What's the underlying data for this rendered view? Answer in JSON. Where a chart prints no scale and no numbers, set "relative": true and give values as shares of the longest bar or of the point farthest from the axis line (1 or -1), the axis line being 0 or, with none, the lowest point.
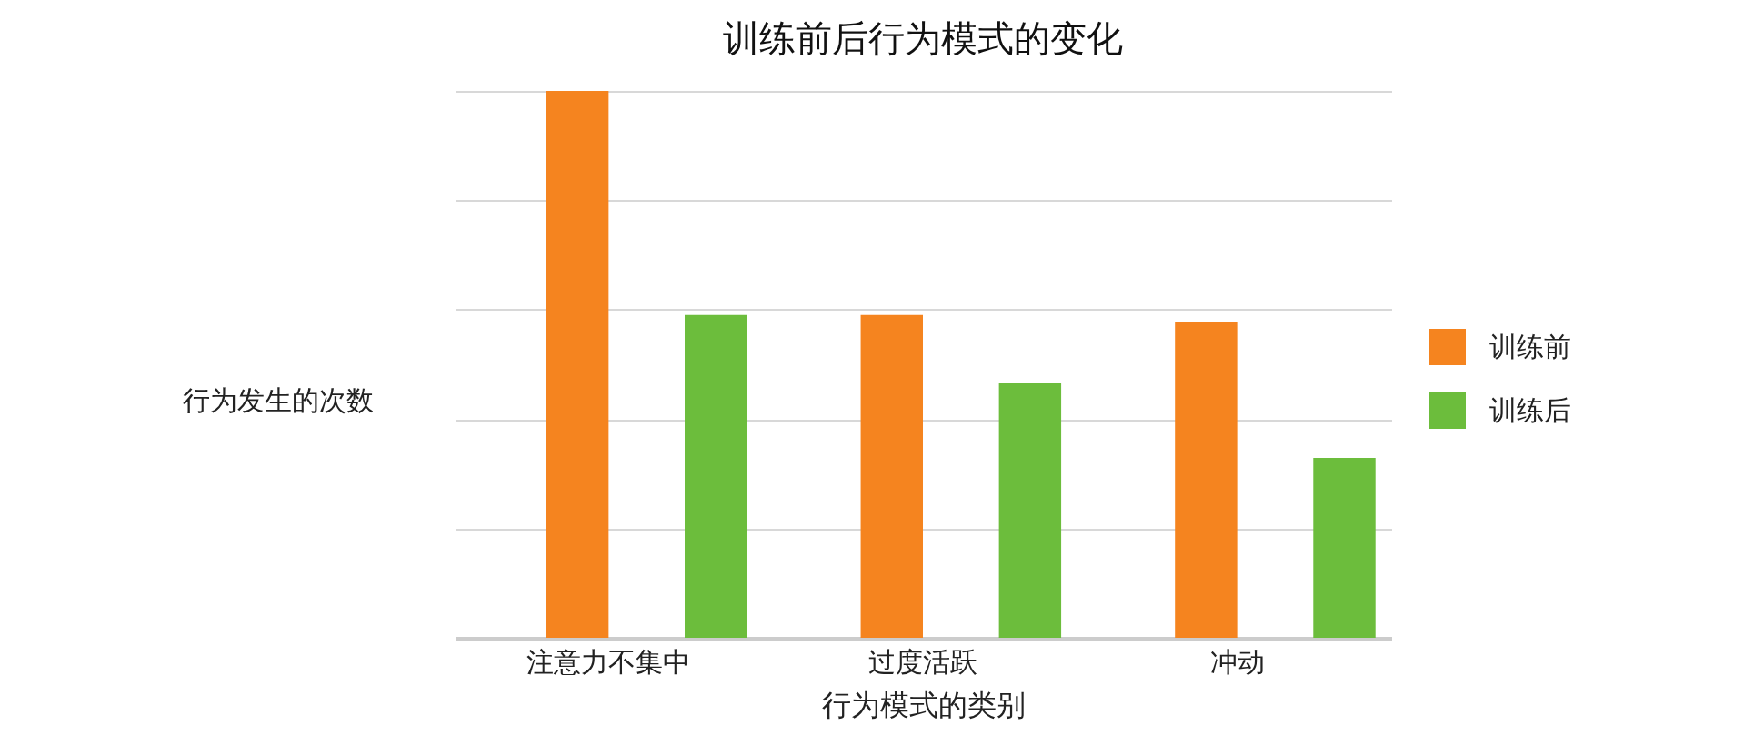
{
  "chart_data": {
    "type": "bar",
    "title": "训练前后行为模式的变化",
    "xlabel": "行为模式的类别",
    "ylabel": "行为发生的次数",
    "relative": true,
    "grid": "y",
    "legend": "right",
    "categories": [
      "注意力不集中",
      "过度活跃",
      "冲动"
    ],
    "series": [
      {
        "name": "训练前",
        "color": "#f5841f",
        "values": [
          1,
          0.59,
          0.578
        ]
      },
      {
        "name": "训练后",
        "color": "#6cbd3c",
        "values": [
          0.59,
          0.465,
          0.329
        ]
      }
    ]
  }
}
